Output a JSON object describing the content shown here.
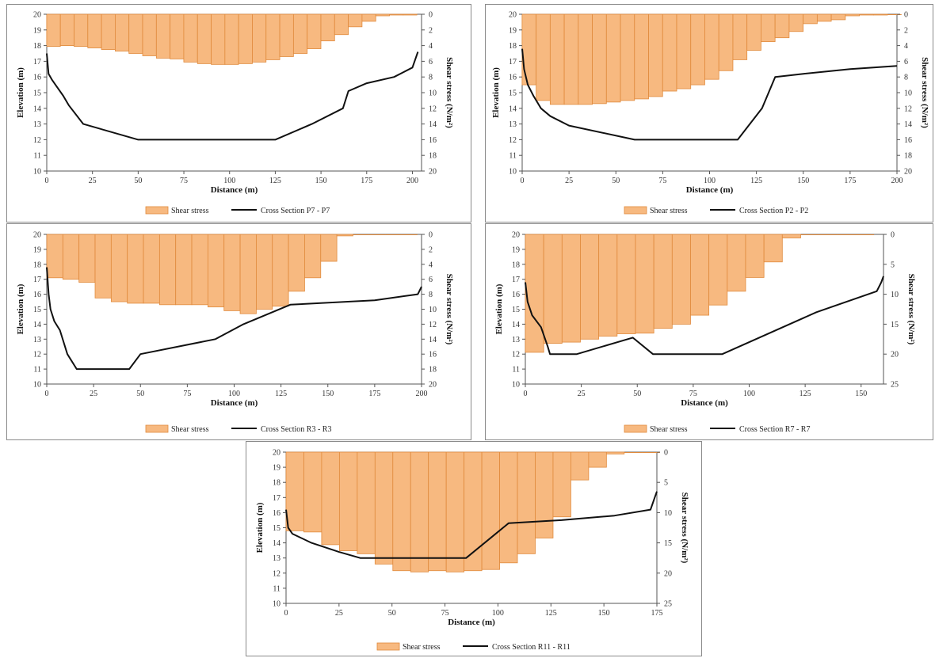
{
  "colors": {
    "bar_fill": "#f7b980",
    "bar_stroke": "#e08a3c",
    "line": "#111111",
    "axis": "#555555"
  },
  "chart_data": [
    {
      "id": "p7",
      "type": "bar+line",
      "xlabel": "Distance (m)",
      "ylabel": "Elevation (m)",
      "y2label": "Shear stress (N/m²)",
      "xlim": [
        0,
        205
      ],
      "xticks": [
        0,
        25,
        50,
        75,
        100,
        125,
        150,
        175,
        200
      ],
      "ylim": [
        10,
        20
      ],
      "yticks": [
        10,
        11,
        12,
        13,
        14,
        15,
        16,
        17,
        18,
        19,
        20
      ],
      "y2lim": [
        0,
        20
      ],
      "y2ticks": [
        0,
        2,
        4,
        6,
        8,
        10,
        12,
        14,
        16,
        18,
        20
      ],
      "legend": [
        "Shear stress",
        "Cross Section P7 - P7"
      ],
      "bar_width": 7.5,
      "bars": {
        "x": [
          3.7,
          11.2,
          18.7,
          26.2,
          33.7,
          41.2,
          48.7,
          56.2,
          63.7,
          71.2,
          78.7,
          86.2,
          93.7,
          101.2,
          108.7,
          116.2,
          123.7,
          131.2,
          138.7,
          146.2,
          153.7,
          161.2,
          168.7,
          176.2,
          183.7,
          191.2,
          198.7
        ],
        "values": [
          4.1,
          4.0,
          4.1,
          4.3,
          4.5,
          4.7,
          5.0,
          5.3,
          5.6,
          5.7,
          6.1,
          6.3,
          6.4,
          6.4,
          6.3,
          6.1,
          5.8,
          5.4,
          5.0,
          4.4,
          3.4,
          2.6,
          1.6,
          0.9,
          0.2,
          0.1,
          0.1
        ]
      },
      "line": {
        "x": [
          0,
          1,
          3,
          6,
          9,
          12,
          20,
          50,
          125,
          145,
          162,
          165,
          175,
          190,
          200,
          203
        ],
        "y": [
          17.5,
          16.2,
          15.8,
          15.3,
          14.8,
          14.2,
          13.0,
          12.0,
          12.0,
          13.0,
          14.0,
          15.1,
          15.6,
          16.0,
          16.6,
          17.6
        ]
      }
    },
    {
      "id": "p2",
      "type": "bar+line",
      "xlabel": "Distance (m)",
      "ylabel": "Elevation (m)",
      "y2label": "Shear stress (N/m²)",
      "xlim": [
        0,
        200
      ],
      "xticks": [
        0,
        25,
        50,
        75,
        100,
        125,
        150,
        175,
        200
      ],
      "ylim": [
        10,
        20
      ],
      "yticks": [
        10,
        11,
        12,
        13,
        14,
        15,
        16,
        17,
        18,
        19,
        20
      ],
      "y2lim": [
        0,
        20
      ],
      "y2ticks": [
        0,
        2,
        4,
        6,
        8,
        10,
        12,
        14,
        16,
        18,
        20
      ],
      "legend": [
        "Shear stress",
        "Cross Section P2 - P2"
      ],
      "bar_width": 7.5,
      "bars": {
        "x": [
          3.7,
          11.2,
          18.7,
          26.2,
          33.7,
          41.2,
          48.7,
          56.2,
          63.7,
          71.2,
          78.7,
          86.2,
          93.7,
          101.2,
          108.7,
          116.2,
          123.7,
          131.2,
          138.7,
          146.2,
          153.7,
          161.2,
          168.7,
          176.2,
          183.7,
          191.2,
          198.7
        ],
        "values": [
          9.0,
          11.0,
          11.5,
          11.5,
          11.5,
          11.4,
          11.2,
          11.0,
          10.8,
          10.5,
          9.8,
          9.5,
          9.0,
          8.3,
          7.2,
          5.8,
          4.6,
          3.5,
          3.0,
          2.2,
          1.2,
          0.9,
          0.7,
          0.2,
          0.1,
          0.1,
          0.0
        ]
      },
      "line": {
        "x": [
          0,
          1,
          3,
          6,
          10,
          15,
          25,
          60,
          115,
          128,
          135,
          150,
          175,
          200
        ],
        "y": [
          17.8,
          16.5,
          15.5,
          14.8,
          14.0,
          13.5,
          12.9,
          12.0,
          12.0,
          14.0,
          16.0,
          16.2,
          16.5,
          16.7
        ]
      }
    },
    {
      "id": "r3",
      "type": "bar+line",
      "xlabel": "Distance (m)",
      "ylabel": "Elevation (m)",
      "y2label": "Shear stress (N/m²)",
      "xlim": [
        0,
        200
      ],
      "xticks": [
        0,
        25,
        50,
        75,
        100,
        125,
        150,
        175,
        200
      ],
      "ylim": [
        10,
        20
      ],
      "yticks": [
        10,
        11,
        12,
        13,
        14,
        15,
        16,
        17,
        18,
        19,
        20
      ],
      "y2lim": [
        0,
        20
      ],
      "y2ticks": [
        0,
        2,
        4,
        6,
        8,
        10,
        12,
        14,
        16,
        18,
        20
      ],
      "legend": [
        "Shear stress",
        "Cross Section R3 - R3"
      ],
      "bar_width": 8.6,
      "bars": {
        "x": [
          4.3,
          12.9,
          21.5,
          30.1,
          38.7,
          47.3,
          55.9,
          64.5,
          73.1,
          81.7,
          90.3,
          98.9,
          107.5,
          116.1,
          124.7,
          133.3,
          141.9,
          150.5,
          159.1,
          167.7,
          176.3,
          184.9,
          193.5
        ],
        "values": [
          5.8,
          6.0,
          6.4,
          8.5,
          9.0,
          9.2,
          9.2,
          9.4,
          9.4,
          9.4,
          9.7,
          10.2,
          10.6,
          10.0,
          9.6,
          7.6,
          5.8,
          3.6,
          0.2,
          0.0,
          0.0,
          0.0,
          0.0
        ]
      },
      "line": {
        "x": [
          0,
          1,
          2,
          4,
          7,
          11,
          16,
          44,
          50,
          90,
          105,
          130,
          175,
          198,
          200
        ],
        "y": [
          17.8,
          16.0,
          15.0,
          14.2,
          13.6,
          12.0,
          11.0,
          11.0,
          12.0,
          13.0,
          14.0,
          15.3,
          15.6,
          16.0,
          16.5
        ]
      }
    },
    {
      "id": "r7",
      "type": "bar+line",
      "xlabel": "Distance (m)",
      "ylabel": "Elevation (m)",
      "y2label": "Shear stress (N/m²)",
      "xlim": [
        0,
        160
      ],
      "xticks": [
        0,
        25,
        50,
        75,
        100,
        125,
        150
      ],
      "ylim": [
        10,
        20
      ],
      "yticks": [
        10,
        11,
        12,
        13,
        14,
        15,
        16,
        17,
        18,
        19,
        20
      ],
      "y2lim": [
        0,
        25
      ],
      "y2ticks": [
        0,
        5,
        10,
        15,
        20,
        25
      ],
      "legend": [
        "Shear stress",
        "Cross Section R7 - R7"
      ],
      "bar_width": 8.2,
      "bars": {
        "x": [
          4.1,
          12.3,
          20.5,
          28.7,
          36.9,
          45.1,
          53.3,
          61.5,
          69.7,
          77.9,
          86.1,
          94.3,
          102.5,
          110.7,
          118.9,
          127.1,
          135.3,
          143.5,
          151.7
        ],
        "values": [
          19.7,
          18.2,
          18.0,
          17.5,
          17.0,
          16.6,
          16.5,
          15.7,
          15.0,
          13.5,
          11.8,
          9.5,
          7.2,
          4.6,
          0.6,
          0.0,
          0.0,
          0.0,
          0.0
        ]
      },
      "line": {
        "x": [
          0,
          1,
          3,
          7,
          10,
          11,
          23,
          48,
          57,
          88,
          130,
          157,
          159,
          160
        ],
        "y": [
          16.8,
          15.5,
          14.6,
          13.8,
          12.5,
          12.0,
          12.0,
          13.1,
          12.0,
          12.0,
          14.8,
          16.2,
          16.8,
          17.2
        ]
      }
    },
    {
      "id": "r11",
      "type": "bar+line",
      "xlabel": "Distance (m)",
      "ylabel": "Elevation (m)",
      "y2label": "Shear stress (N/m²)",
      "xlim": [
        0,
        175
      ],
      "xticks": [
        0,
        25,
        50,
        75,
        100,
        125,
        150,
        175
      ],
      "ylim": [
        10,
        20
      ],
      "yticks": [
        10,
        11,
        12,
        13,
        14,
        15,
        16,
        17,
        18,
        19,
        20
      ],
      "y2lim": [
        0,
        25
      ],
      "y2ticks": [
        0,
        5,
        10,
        15,
        20,
        25
      ],
      "legend": [
        "Shear stress",
        "Cross Section R11 - R11"
      ],
      "bar_width": 8.4,
      "bars": {
        "x": [
          4.2,
          12.6,
          21.0,
          29.4,
          37.8,
          46.2,
          54.6,
          63.0,
          71.4,
          79.8,
          88.2,
          96.6,
          105.0,
          113.4,
          121.8,
          130.2,
          138.6,
          147.0,
          155.4,
          163.8,
          172.2
        ],
        "values": [
          13.0,
          13.2,
          15.3,
          16.3,
          16.8,
          18.5,
          19.6,
          19.8,
          19.6,
          19.8,
          19.6,
          19.4,
          18.3,
          16.8,
          14.2,
          10.7,
          4.6,
          2.5,
          0.3,
          0.0,
          0.0
        ]
      },
      "line": {
        "x": [
          0,
          1,
          3,
          12,
          25,
          35,
          70,
          85,
          105,
          130,
          155,
          172,
          174,
          175
        ],
        "y": [
          16.2,
          15.0,
          14.6,
          14.0,
          13.4,
          13.0,
          13.0,
          13.0,
          15.3,
          15.5,
          15.8,
          16.2,
          17.0,
          17.4
        ]
      }
    }
  ]
}
